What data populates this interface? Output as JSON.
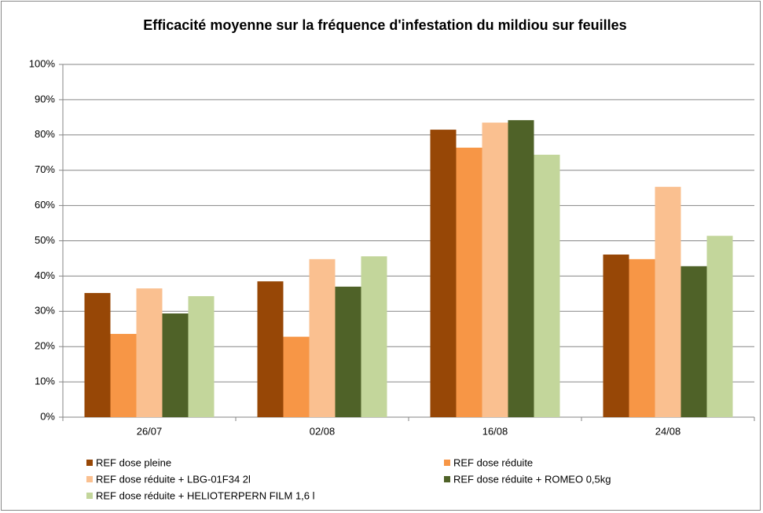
{
  "chart_data": {
    "type": "bar",
    "title": "Efficacité moyenne sur la fréquence d'infestation du mildiou sur feuilles",
    "categories": [
      "26/07",
      "02/08",
      "16/08",
      "24/08"
    ],
    "series": [
      {
        "name": "REF dose pleine",
        "color": "#974706",
        "values": [
          35.2,
          38.5,
          81.5,
          46.1
        ]
      },
      {
        "name": "REF dose réduite",
        "color": "#f79646",
        "values": [
          23.6,
          22.8,
          76.4,
          44.8
        ]
      },
      {
        "name": "REF dose réduite + LBG-01F34 2l",
        "color": "#fac090",
        "values": [
          36.5,
          44.8,
          83.5,
          65.3
        ]
      },
      {
        "name": "REF dose réduite + ROMEO 0,5kg",
        "color": "#4f6228",
        "values": [
          29.4,
          37.0,
          84.2,
          42.8
        ]
      },
      {
        "name": "REF dose réduite + HELIOTERPERN FILM 1,6 l",
        "color": "#c3d69b",
        "values": [
          34.3,
          45.6,
          74.4,
          51.4
        ]
      }
    ],
    "ylim": [
      0,
      100
    ],
    "yticks": [
      {
        "value": 0,
        "label": "0%"
      },
      {
        "value": 10,
        "label": "10%"
      },
      {
        "value": 20,
        "label": "20%"
      },
      {
        "value": 30,
        "label": "30%"
      },
      {
        "value": 40,
        "label": "40%"
      },
      {
        "value": 50,
        "label": "50%"
      },
      {
        "value": 60,
        "label": "60%"
      },
      {
        "value": 70,
        "label": "70%"
      },
      {
        "value": 80,
        "label": "80%"
      },
      {
        "value": 90,
        "label": "90%"
      },
      {
        "value": 100,
        "label": "100%"
      }
    ],
    "grid": true,
    "legend": "bottom"
  }
}
